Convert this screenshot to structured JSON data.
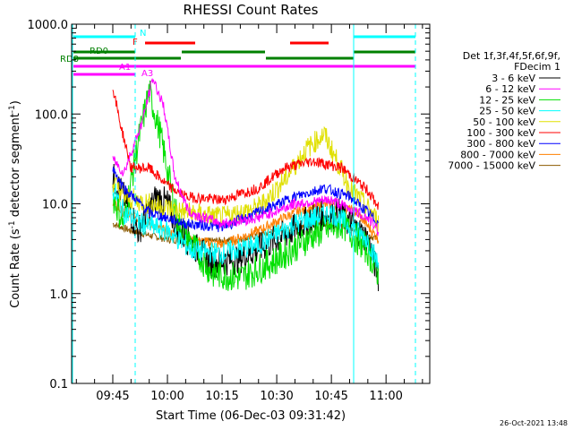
{
  "chart_data": {
    "type": "line",
    "title": "RHESSI Count Rates",
    "xlabel": "Start Time (06-Dec-03 09:31:42)",
    "ylabel": "Count Rate (s",
    "ylabel_sup1": "-1",
    "ylabel_mid": " detector segment",
    "ylabel_sup2": "-1",
    "ylabel_end": ")",
    "y_scale": "log",
    "ylim": [
      0.1,
      1000
    ],
    "y_ticks": [
      "0.1",
      "1.0",
      "10.0",
      "100.0",
      "1000.0"
    ],
    "x_range_minutes": [
      573.7,
      672
    ],
    "x_ticks": [
      {
        "label": "09:45",
        "minute": 585
      },
      {
        "label": "10:00",
        "minute": 600
      },
      {
        "label": "10:15",
        "minute": 615
      },
      {
        "label": "10:30",
        "minute": 630
      },
      {
        "label": "10:45",
        "minute": 645
      },
      {
        "label": "11:00",
        "minute": 660
      }
    ],
    "legend_header": [
      "Det 1f,3f,4f,5f,6f,9f,",
      "FDecim 1"
    ],
    "series": [
      {
        "name": "3 - 6 keV",
        "color": "#000000"
      },
      {
        "name": "6 - 12 keV",
        "color": "#ff00ff"
      },
      {
        "name": "12 - 25 keV",
        "color": "#00e000"
      },
      {
        "name": "25 - 50 keV",
        "color": "#00ffff"
      },
      {
        "name": "50 - 100 keV",
        "color": "#e0e000"
      },
      {
        "name": "100 - 300 keV",
        "color": "#ff0000"
      },
      {
        "name": "300 - 800 keV",
        "color": "#0000ff"
      },
      {
        "name": "800 - 7000 keV",
        "color": "#ff8000"
      },
      {
        "name": "7000 - 15000 keV",
        "color": "#8b5a00"
      }
    ],
    "flag_bars": [
      {
        "label": "N",
        "color": "#00ffff"
      },
      {
        "label": "F",
        "color": "#ff0000"
      },
      {
        "label": "RD0",
        "color": "#008000"
      },
      {
        "label": "RD8",
        "color": "#008000"
      },
      {
        "label": "A1",
        "color": "#ff00ff"
      },
      {
        "label": "A3",
        "color": "#ff00ff"
      }
    ],
    "timestamp": "26-Oct-2021 13:48"
  }
}
